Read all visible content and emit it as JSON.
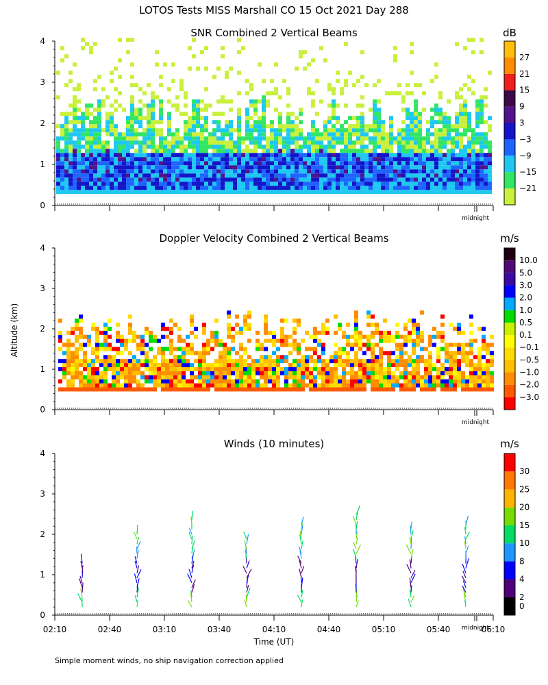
{
  "figure": {
    "title": "LOTOS Tests MISS Marshall CO  15 Oct 2021 Day 288",
    "shared_ylabel": "Altitude (km)",
    "xlabel": "Time (UT)",
    "footnote": "Simple moment winds, no ship navigation correction applied",
    "midnight_label": "midnight",
    "x_ticks": [
      "02:10",
      "02:40",
      "03:10",
      "03:40",
      "04:10",
      "04:40",
      "05:10",
      "05:40",
      "06:10"
    ],
    "y_ticks": [
      "0",
      "1",
      "2",
      "3",
      "4"
    ]
  },
  "chart_data": [
    {
      "type": "heatmap",
      "title": "SNR Combined 2 Vertical Beams",
      "units": "dB",
      "xlabel": "Time (UT)",
      "ylabel": "Altitude (km)",
      "xlim": [
        "02:10",
        "06:10"
      ],
      "ylim": [
        0,
        4
      ],
      "colorbar_ticks": [
        "27",
        "21",
        "15",
        "9",
        "3",
        "−3",
        "−9",
        "−15",
        "−21"
      ],
      "colorbar_levels": [
        -21,
        -15,
        -9,
        -3,
        3,
        9,
        15,
        21,
        27
      ],
      "colorbar_colors": [
        "#c8f03c",
        "#32e664",
        "#1ec8f0",
        "#1e64ff",
        "#1414c8",
        "#50148c",
        "#3c0a46",
        "#f01e1e",
        "#ff8c00",
        "#ffbe0a"
      ],
      "description": "Echo from ~0.3 km to ~2.5 km, strongest (-3 to 3 dB) below 1.2 km, sparse weak echo up to 4 km"
    },
    {
      "type": "heatmap",
      "title": "Doppler Velocity Combined 2 Vertical Beams",
      "units": "m/s",
      "xlabel": "Time (UT)",
      "ylabel": "Altitude (km)",
      "xlim": [
        "02:10",
        "06:10"
      ],
      "ylim": [
        0,
        4
      ],
      "colorbar_ticks": [
        "10.0",
        "5.0",
        "3.0",
        "2.0",
        "1.0",
        "0.5",
        "0.1",
        "−0.1",
        "−0.5",
        "−1.0",
        "−2.0",
        "−3.0"
      ],
      "colorbar_levels": [
        -3.0,
        -2.0,
        -1.0,
        -0.5,
        -0.1,
        0.1,
        0.5,
        1.0,
        2.0,
        3.0,
        5.0,
        10.0
      ],
      "colorbar_colors": [
        "#ff0000",
        "#ff5a00",
        "#ff8c00",
        "#ffbe00",
        "#ffdc00",
        "#ffff00",
        "#c8f000",
        "#00dc00",
        "#00aaff",
        "#0000ff",
        "#3c0aa0",
        "#500a78",
        "#200010"
      ],
      "description": "Mostly -0.1 to -2 m/s between 0.4 and 2.3 km with scattered positive values"
    },
    {
      "type": "scatter",
      "title": "Winds (10 minutes)",
      "units": "m/s",
      "xlabel": "Time (UT)",
      "ylabel": "Altitude (km)",
      "xlim": [
        "02:10",
        "06:10"
      ],
      "ylim": [
        0,
        4
      ],
      "colorbar_ticks": [
        "30",
        "25",
        "20",
        "15",
        "10",
        "8",
        "4",
        "2",
        "0"
      ],
      "colorbar_levels": [
        0,
        2,
        4,
        8,
        10,
        15,
        20,
        25,
        30
      ],
      "colorbar_colors": [
        "#000000",
        "#500078",
        "#0000ff",
        "#1e96ff",
        "#00dc64",
        "#78dc00",
        "#ffb400",
        "#ff7800",
        "#ff0000"
      ],
      "profile_times": [
        "02:25",
        "02:55",
        "03:25",
        "03:55",
        "04:25",
        "04:55",
        "05:25",
        "05:55"
      ],
      "profile_top_km": [
        1.35,
        2.1,
        2.45,
        1.9,
        2.25,
        2.5,
        2.2,
        2.25
      ],
      "description": "Wind barb profiles every 30 minutes, low winds (2-8 m/s) near 1 km, 10-20 m/s above 1.5 km and near surface"
    }
  ]
}
